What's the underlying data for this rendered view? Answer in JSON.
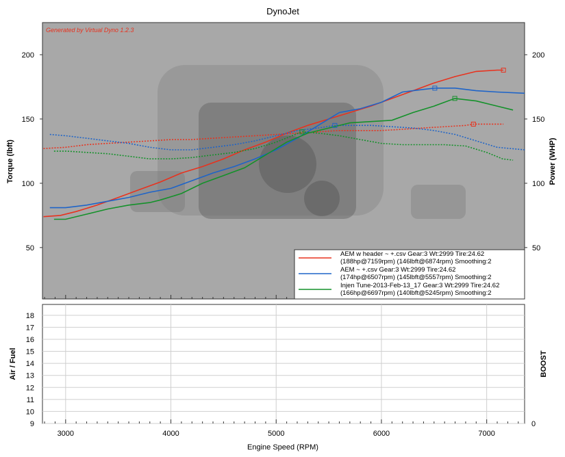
{
  "chart_data": [
    {
      "type": "line",
      "title": "DynoJet",
      "watermark": "Generated by Virtual Dyno 1.2.3",
      "xlabel": "Engine Speed (RPM)",
      "ylabel": "Torque (lbft)",
      "y2label": "Power (WHP)",
      "xlim": [
        2780,
        7360
      ],
      "ylim": [
        10,
        225
      ],
      "y2lim": [
        10,
        225
      ],
      "x_ticks": [
        3000,
        4000,
        5000,
        6000,
        7000
      ],
      "x_tick_labels": [
        "3000",
        "4000",
        "5000",
        "6000",
        "7000"
      ],
      "y_ticks": [
        50,
        100,
        150,
        200
      ],
      "y_tick_labels": [
        "50",
        "100",
        "150",
        "200"
      ],
      "y2_tick_labels": [
        "50",
        "100",
        "150",
        "200"
      ],
      "background_color": "#a8a8a8",
      "legend_position": "bottom-right",
      "series": [
        {
          "name": "AEM w header ~ +.csv Gear:3 Wt:2999 Tire:24.62",
          "detail": "(188hp@7159rpm) (146lbft@6874rpm) Smoothing:2",
          "color": "#e8321e",
          "power_x": [
            2790,
            2950,
            3100,
            3300,
            3500,
            3700,
            3900,
            4100,
            4300,
            4500,
            4700,
            4900,
            5100,
            5300,
            5500,
            5700,
            5900,
            6100,
            6300,
            6500,
            6700,
            6900,
            7100,
            7159
          ],
          "power_y": [
            74,
            75,
            78,
            83,
            89,
            95,
            101,
            108,
            113,
            119,
            126,
            132,
            139,
            145,
            150,
            155,
            160,
            166,
            172,
            178,
            183,
            187,
            188,
            188
          ],
          "torque_x": [
            2790,
            3000,
            3200,
            3400,
            3600,
            3800,
            4000,
            4200,
            4400,
            4600,
            4800,
            5000,
            5200,
            5400,
            5600,
            5800,
            6000,
            6200,
            6400,
            6600,
            6800,
            6874,
            7000,
            7159
          ],
          "torque_y": [
            127,
            128,
            130,
            131,
            132,
            133,
            134,
            134,
            135,
            136,
            137,
            138,
            139,
            140,
            141,
            141,
            141,
            142,
            143,
            144,
            145,
            146,
            146,
            146
          ],
          "power_marker": [
            7159,
            188
          ],
          "torque_marker": [
            6874,
            146
          ]
        },
        {
          "name": "AEM ~ +.csv Gear:3 Wt:2999 Tire:24.62",
          "detail": "(174hp@6507rpm) (145lbft@5557rpm) Smoothing:2",
          "color": "#1e64c8",
          "power_x": [
            2850,
            3000,
            3200,
            3400,
            3600,
            3800,
            4000,
            4200,
            4400,
            4600,
            4800,
            5000,
            5200,
            5400,
            5600,
            5800,
            6000,
            6200,
            6400,
            6507,
            6700,
            6900,
            7100,
            7360
          ],
          "power_y": [
            81,
            81,
            83,
            86,
            89,
            93,
            96,
            102,
            108,
            113,
            119,
            126,
            135,
            145,
            155,
            158,
            163,
            171,
            173,
            174,
            174,
            172,
            171,
            170
          ],
          "torque_x": [
            2850,
            3000,
            3200,
            3400,
            3600,
            3800,
            4000,
            4200,
            4400,
            4600,
            4800,
            5000,
            5200,
            5400,
            5557,
            5700,
            5900,
            6100,
            6300,
            6500,
            6700,
            6900,
            7100,
            7360
          ],
          "torque_y": [
            138,
            137,
            135,
            133,
            131,
            128,
            126,
            126,
            128,
            130,
            133,
            137,
            141,
            143,
            145,
            145,
            145,
            144,
            143,
            141,
            138,
            133,
            128,
            126
          ],
          "power_marker": [
            6507,
            174
          ],
          "torque_marker": [
            5557,
            145
          ]
        },
        {
          "name": "Injen Tune-2013-Feb-13_17 Gear:3 Wt:2999 Tire:24.62",
          "detail": "(166hp@6697rpm) (140lbft@5245rpm) Smoothing:2",
          "color": "#14912a",
          "power_x": [
            2890,
            3000,
            3200,
            3400,
            3600,
            3800,
            3900,
            4100,
            4300,
            4500,
            4700,
            4900,
            5100,
            5300,
            5500,
            5700,
            5900,
            6100,
            6300,
            6500,
            6697,
            6900,
            7100,
            7250
          ],
          "power_y": [
            72,
            72,
            76,
            80,
            83,
            85,
            87,
            92,
            100,
            106,
            112,
            122,
            132,
            139,
            143,
            147,
            148,
            149,
            155,
            160,
            166,
            164,
            160,
            157
          ],
          "torque_x": [
            2890,
            3000,
            3200,
            3400,
            3600,
            3800,
            4000,
            4200,
            4400,
            4600,
            4800,
            5000,
            5245,
            5400,
            5600,
            5800,
            6000,
            6200,
            6400,
            6600,
            6800,
            7000,
            7150,
            7250
          ],
          "torque_y": [
            125,
            125,
            124,
            123,
            121,
            119,
            119,
            120,
            122,
            124,
            127,
            132,
            140,
            139,
            137,
            134,
            131,
            130,
            130,
            130,
            129,
            124,
            119,
            118
          ],
          "power_marker": [
            6697,
            166
          ],
          "torque_marker": [
            5245,
            140
          ]
        }
      ]
    },
    {
      "type": "line",
      "xlabel": "Engine Speed (RPM)",
      "ylabel": "Air / Fuel",
      "y2label": "BOOST",
      "xlim": [
        2780,
        7360
      ],
      "ylim": [
        9,
        18.9
      ],
      "y_ticks": [
        9,
        10,
        11,
        12,
        13,
        14,
        15,
        16,
        17,
        18
      ],
      "y_tick_labels": [
        "9",
        "10",
        "11",
        "12",
        "13",
        "14",
        "15",
        "16",
        "17",
        "18"
      ],
      "y2_tick_labels": [
        "0"
      ],
      "x_ticks": [
        3000,
        4000,
        5000,
        6000,
        7000
      ],
      "x_tick_labels": [
        "3000",
        "4000",
        "5000",
        "6000",
        "7000"
      ],
      "grid": true,
      "series": []
    }
  ]
}
